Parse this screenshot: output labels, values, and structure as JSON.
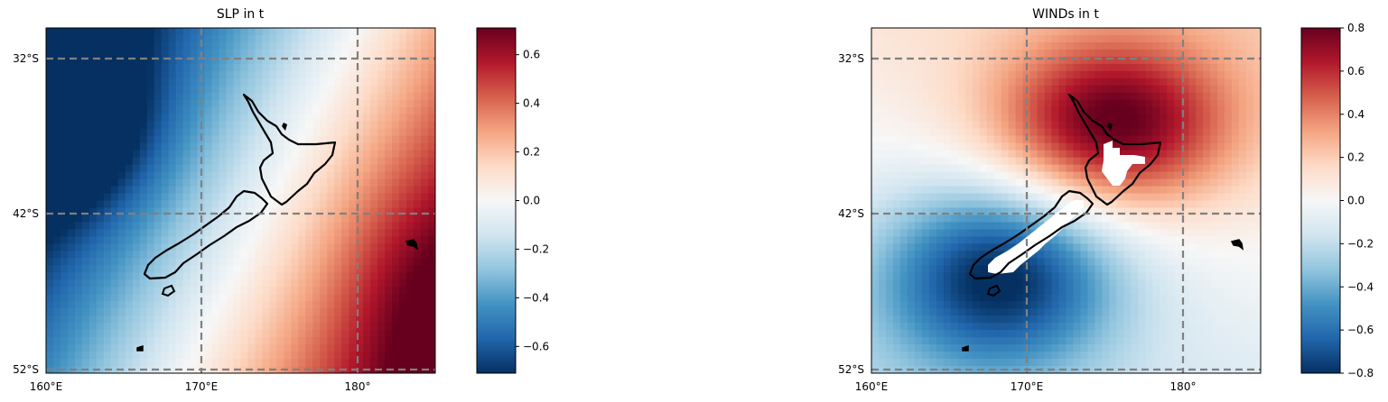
{
  "panels": [
    {
      "title": "SLP in t",
      "lat_labels": [
        "32°S",
        "42°S",
        "52°S"
      ],
      "lon_labels": [
        "160°E",
        "170°E",
        "180°"
      ],
      "colorbar": {
        "min": -0.71,
        "max": 0.71,
        "ticks": [
          -0.6,
          -0.4,
          -0.2,
          0.0,
          0.2,
          0.4,
          0.6
        ],
        "tick_labels": [
          "−0.6",
          "−0.4",
          "−0.2",
          "0.0",
          "0.2",
          "0.4",
          "0.6"
        ]
      }
    },
    {
      "title": "WINDs in t",
      "lat_labels": [
        "32°S",
        "42°S",
        "52°S"
      ],
      "lon_labels": [
        "160°E",
        "170°E",
        "180°"
      ],
      "colorbar": {
        "min": -0.8,
        "max": 0.8,
        "ticks": [
          -0.8,
          -0.6,
          -0.4,
          -0.2,
          0.0,
          0.2,
          0.4,
          0.6,
          0.8
        ],
        "tick_labels": [
          "−0.8",
          "−0.6",
          "−0.4",
          "−0.2",
          "0.0",
          "0.2",
          "0.4",
          "0.6",
          "0.8"
        ]
      }
    }
  ],
  "colormap": "RdBu_r",
  "gridline_color": "#808080",
  "coastline_color": "#000000"
}
